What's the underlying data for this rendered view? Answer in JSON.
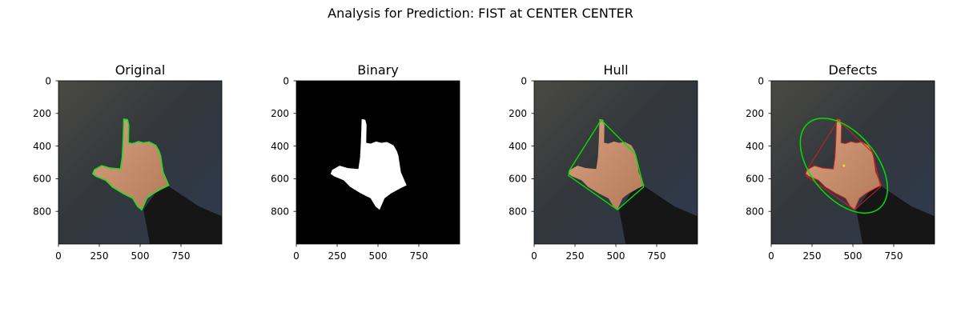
{
  "figure_title": "Analysis for Prediction: FIST at CENTER CENTER",
  "colors": {
    "contour": "#22dd22",
    "hull_line": "#00e000",
    "ellipse": "#00e000",
    "defect_line": "#cc2222",
    "centroid": "#e8e800",
    "background_photo": "#3a3c40",
    "binary_bg": "#000000",
    "binary_fg": "#ffffff",
    "skin": "#c8906c",
    "sleeve": "#161616"
  },
  "chart_data": [
    {
      "type": "image",
      "title": "Original",
      "xlim": [
        0,
        1000
      ],
      "ylim": [
        1000,
        0
      ],
      "xticks": [
        0,
        250,
        500,
        750
      ],
      "yticks": [
        0,
        200,
        400,
        600,
        800
      ],
      "overlay": "contour",
      "icon": "hand-photo"
    },
    {
      "type": "image",
      "title": "Binary",
      "xlim": [
        0,
        1000
      ],
      "ylim": [
        1000,
        0
      ],
      "xticks": [
        0,
        250,
        500,
        750
      ],
      "yticks": [
        0,
        200,
        400,
        600,
        800
      ],
      "overlay": "mask",
      "icon": "hand-mask"
    },
    {
      "type": "image",
      "title": "Hull",
      "xlim": [
        0,
        1000
      ],
      "ylim": [
        1000,
        0
      ],
      "xticks": [
        0,
        250,
        500,
        750
      ],
      "yticks": [
        0,
        200,
        400,
        600,
        800
      ],
      "overlay": "hull",
      "hull_points": [
        [
          410,
          240
        ],
        [
          620,
          450
        ],
        [
          670,
          650
        ],
        [
          510,
          790
        ],
        [
          210,
          580
        ],
        [
          215,
          550
        ]
      ],
      "icon": "hand-photo"
    },
    {
      "type": "image",
      "title": "Defects",
      "xlim": [
        0,
        1000
      ],
      "ylim": [
        1000,
        0
      ],
      "xticks": [
        0,
        250,
        500,
        750
      ],
      "yticks": [
        0,
        200,
        400,
        600,
        800
      ],
      "overlay": "defects",
      "ellipse": {
        "cx": 445,
        "cy": 520,
        "rx": 340,
        "ry": 200,
        "angle_deg": 50
      },
      "centroid": [
        445,
        520
      ],
      "defect_lines": [
        [
          [
            410,
            240
          ],
          [
            210,
            560
          ]
        ],
        [
          [
            410,
            240
          ],
          [
            620,
            440
          ]
        ],
        [
          [
            620,
            440
          ],
          [
            670,
            650
          ]
        ],
        [
          [
            670,
            650
          ],
          [
            510,
            790
          ]
        ],
        [
          [
            510,
            790
          ],
          [
            210,
            580
          ]
        ]
      ],
      "icon": "hand-photo"
    }
  ]
}
